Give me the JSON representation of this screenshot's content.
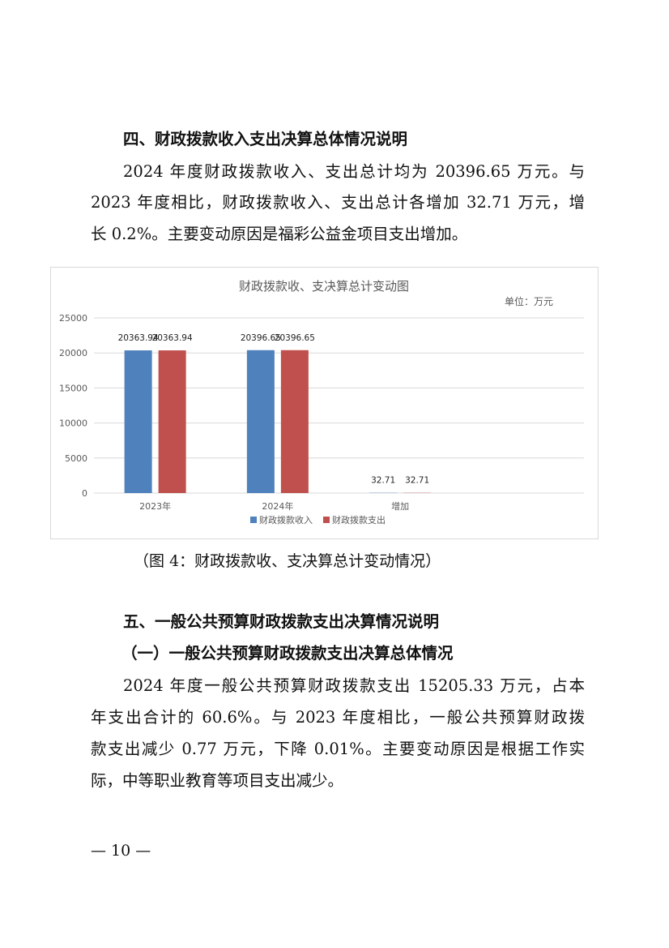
{
  "section4": {
    "heading": "四、财政拨款收入支出决算总体情况说明",
    "lines": [
      "2024 年度财政拨款收入、支出总计均为 20396.65 万元。与",
      "2023 年度相比，财政拨款收入、支出总计各增加 32.71 万元，增",
      "长 0.2%。主要变动原因是福彩公益金项目支出增加。"
    ]
  },
  "chart_data": {
    "type": "bar",
    "title": "财政拨款收、支决算总计变动图",
    "unit_label": "单位：万元",
    "categories": [
      "2023年",
      "2024年",
      "增加"
    ],
    "series": [
      {
        "name": "财政拨款收入",
        "color": "#4f81bd",
        "values": [
          20363.94,
          20396.65,
          32.71
        ],
        "labels": [
          "20363.94",
          "20396.65",
          "32.71"
        ]
      },
      {
        "name": "财政拨款支出",
        "color": "#c0504d",
        "values": [
          20363.94,
          20396.65,
          32.71
        ],
        "labels": [
          "20363.94",
          "20396.65",
          "32.71"
        ]
      }
    ],
    "ylim": [
      0,
      25000
    ],
    "yticks": [
      "0",
      "5000",
      "10000",
      "15000",
      "20000",
      "25000"
    ],
    "grid": true,
    "legend": "bottom"
  },
  "caption": "（图 4：财政拨款收、支决算总计变动情况）",
  "section5": {
    "heading": "五、一般公共预算财政拨款支出决算情况说明",
    "subheading": "（一）一般公共预算财政拨款支出决算总体情况",
    "lines": [
      "2024 年度一般公共预算财政拨款支出 15205.33 万元，占本",
      "年支出合计的 60.6%。与 2023 年度相比，一般公共预算财政拨",
      "款支出减少 0.77 万元，下降 0.01%。主要变动原因是根据工作实",
      "际，中等职业教育等项目支出减少。"
    ]
  },
  "footer": "— 10 —"
}
